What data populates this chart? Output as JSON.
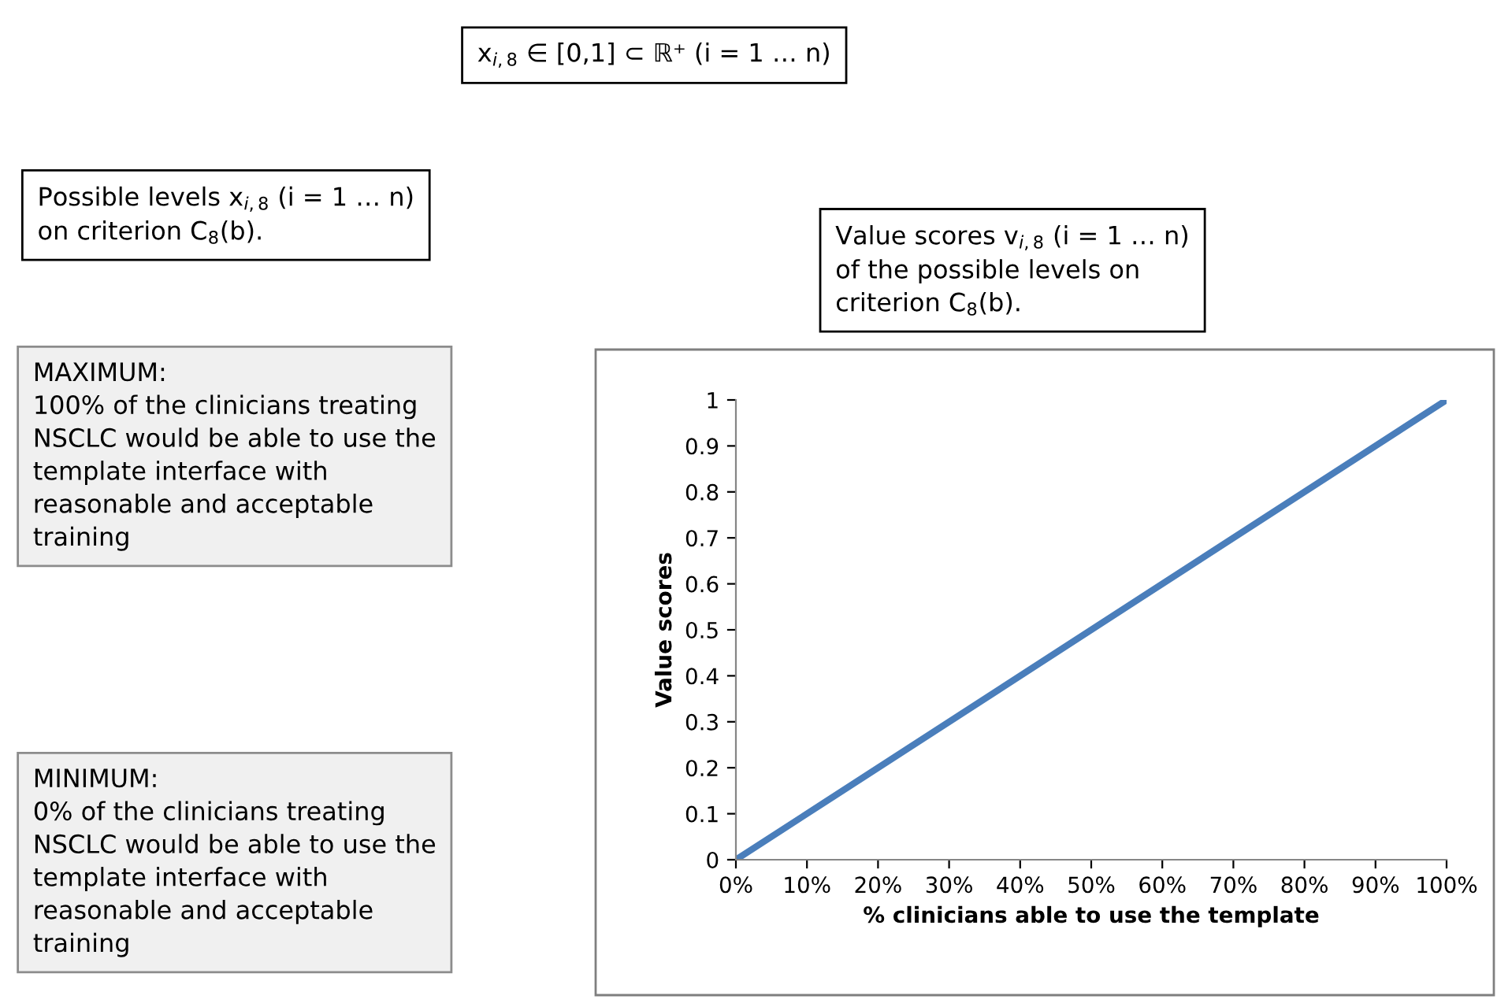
{
  "chart_data": {
    "type": "line",
    "xlabel": "% clinicians able to use the template",
    "ylabel": "Value scores",
    "x": [
      0,
      1
    ],
    "values": [
      0,
      1
    ],
    "color": "#4a7ebb",
    "xlim": [
      0,
      1
    ],
    "xticks": [
      {
        "value": 0,
        "label": "0%"
      },
      {
        "value": 0.1,
        "label": "10%"
      },
      {
        "value": 0.2,
        "label": "20%"
      },
      {
        "value": 0.3,
        "label": "30%"
      },
      {
        "value": 0.4,
        "label": "40%"
      },
      {
        "value": 0.5,
        "label": "50%"
      },
      {
        "value": 0.6,
        "label": "60%"
      },
      {
        "value": 0.7,
        "label": "70%"
      },
      {
        "value": 0.8,
        "label": "80%"
      },
      {
        "value": 0.9,
        "label": "90%"
      },
      {
        "value": 1,
        "label": "100%"
      }
    ],
    "ylim": [
      0,
      1
    ],
    "yticks": [
      0,
      0.1,
      0.2,
      0.3,
      0.4,
      0.5,
      0.6,
      0.7,
      0.8,
      0.9,
      1
    ],
    "grid": false,
    "marker": "none",
    "line_style": "solid",
    "annotations": [
      "x$_{i,8}$ ∈ [0,1] ⊂ ℝ⁺ (i = 1 … n)",
      "Possible levels x$_{i,8}$ (i = 1 … n)\non criterion C$_{8}$(b).",
      "Value scores v$_{i,8}$ (i = 1 … n)\nof the possible levels on\ncriterion C$_{8}$(b).",
      "MAXIMUM:\n100% of the clinicians treating\nNSCLC would be able to use the\ntemplate interface with\nreasonable and acceptable\ntraining",
      "MINIMUM:\n0% of the clinicians treating\nNSCLC would be able to use the\ntemplate interface with\nreasonable and acceptable\ntraining"
    ]
  }
}
